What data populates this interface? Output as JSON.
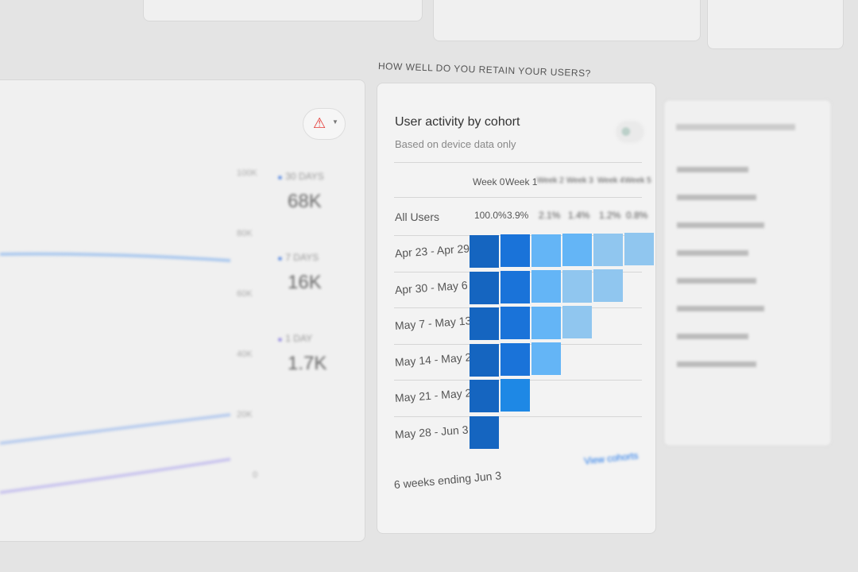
{
  "left_card": {
    "y_ticks": [
      "100K",
      "80K",
      "60K",
      "40K",
      "20K",
      "0"
    ],
    "legend": [
      {
        "label": "30 DAYS",
        "value": "68K"
      },
      {
        "label": "7 DAYS",
        "value": "16K"
      },
      {
        "label": "1 DAY",
        "value": "1.7K"
      }
    ],
    "alert_icon": "warning-icon"
  },
  "section_title": "HOW WELL DO YOU RETAIN YOUR USERS?",
  "cohort": {
    "title": "User activity by cohort",
    "subtitle": "Based on device data only",
    "weeks": [
      "Week 0",
      "Week 1",
      "Week 2",
      "Week 3",
      "Week 4",
      "Week 5"
    ],
    "all_users_label": "All Users",
    "all_users": [
      "100.0%",
      "3.9%",
      "2.1%",
      "1.4%",
      "1.2%",
      "0.8%"
    ],
    "rows": [
      "Apr 23 - Apr 29",
      "Apr 30 - May 6",
      "May 7 - May 13",
      "May 14 - May 20",
      "May 21 - May 27",
      "May 28 - Jun 3"
    ],
    "footer": "6 weeks ending Jun 3",
    "link": "View cohorts",
    "colors": {
      "week0": "#1565c0",
      "week1": "#1a73d9",
      "dark": "#1e88e5",
      "light": "#64b5f6",
      "lighter": "#90c6ef"
    }
  }
}
